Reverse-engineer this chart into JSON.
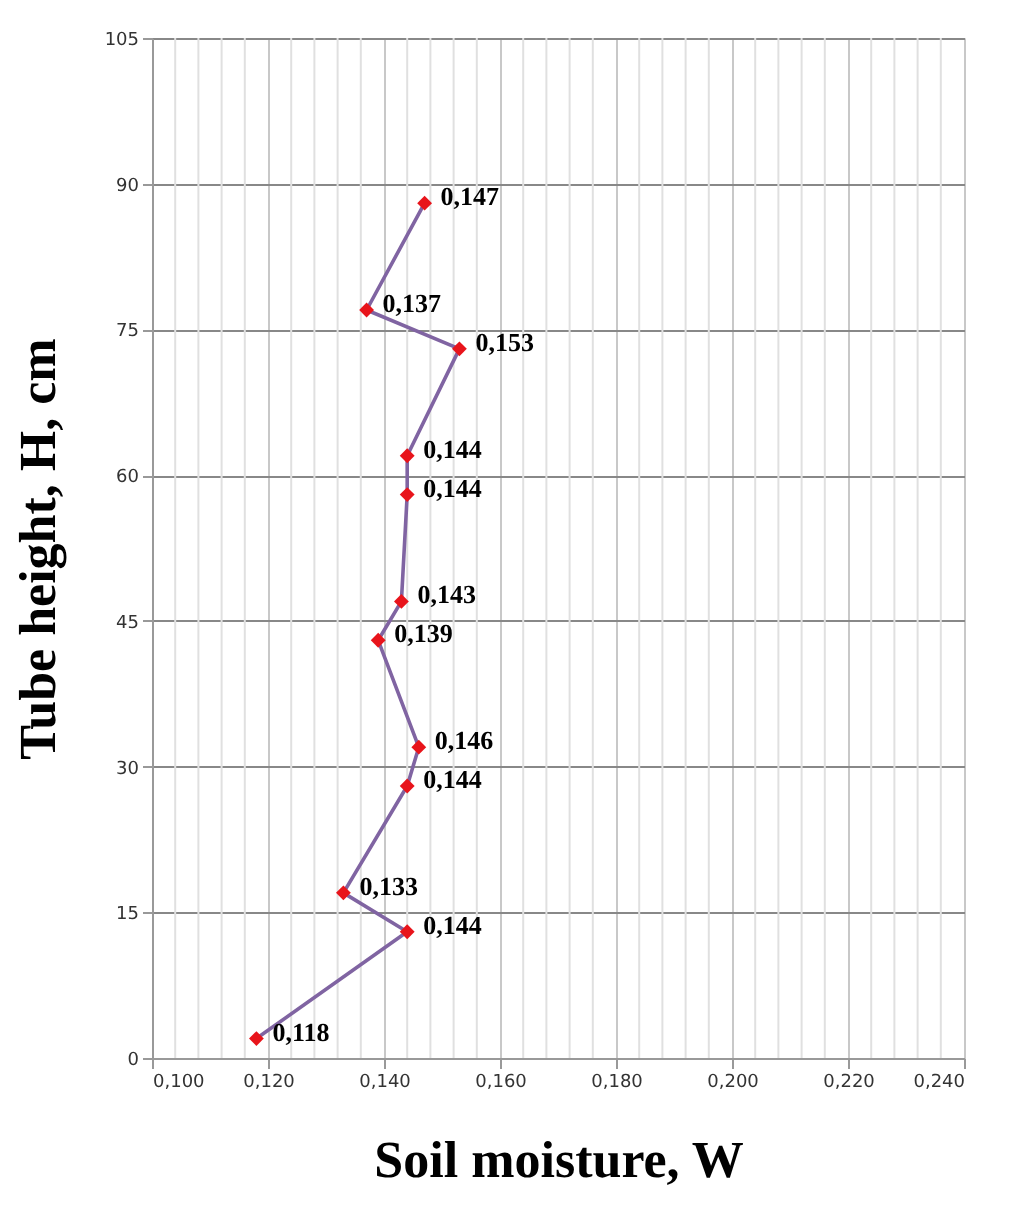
{
  "chart_data": {
    "type": "line",
    "xlabel": "Soil moisture, W",
    "ylabel": "Tube height, H, cm",
    "x": [
      0.118,
      0.144,
      0.133,
      0.144,
      0.146,
      0.139,
      0.143,
      0.144,
      0.144,
      0.153,
      0.137,
      0.147
    ],
    "series": [
      {
        "color": "#8064a2",
        "colors": [
          "#e8141b",
          "#e8141b",
          "#e8141b",
          "#e8141b",
          "#e8141b",
          "#e8141b",
          "#e8141b",
          "#e8141b",
          "#e8141b",
          "#e8141b",
          "#e8141b",
          "#e8141b"
        ],
        "values": [
          2,
          13,
          17,
          28,
          32,
          43,
          47,
          58,
          62,
          73,
          77,
          88
        ]
      }
    ],
    "marker": "diamond",
    "line_style": "solid",
    "annotations": [
      {
        "text": "0,118",
        "x": 0.118,
        "y": 2
      },
      {
        "text": "0,144",
        "x": 0.144,
        "y": 13
      },
      {
        "text": "0,133",
        "x": 0.133,
        "y": 17
      },
      {
        "text": "0,144",
        "x": 0.144,
        "y": 28
      },
      {
        "text": "0,146",
        "x": 0.146,
        "y": 32
      },
      {
        "text": "0,139",
        "x": 0.139,
        "y": 43
      },
      {
        "text": "0,143",
        "x": 0.143,
        "y": 47
      },
      {
        "text": "0,144",
        "x": 0.144,
        "y": 58
      },
      {
        "text": "0,144",
        "x": 0.144,
        "y": 62
      },
      {
        "text": "0,153",
        "x": 0.153,
        "y": 73
      },
      {
        "text": "0,137",
        "x": 0.137,
        "y": 77
      },
      {
        "text": "0,147",
        "x": 0.147,
        "y": 88
      }
    ],
    "xlim": [
      0.1,
      0.24
    ],
    "ylim": [
      0,
      105
    ],
    "xticks": [
      {
        "value": 0.1,
        "label": "0,100"
      },
      {
        "value": 0.104,
        "label": null
      },
      {
        "value": 0.108,
        "label": null
      },
      {
        "value": 0.112,
        "label": null
      },
      {
        "value": 0.116,
        "label": null
      },
      {
        "value": 0.12,
        "label": "0,120"
      },
      {
        "value": 0.124,
        "label": null
      },
      {
        "value": 0.128,
        "label": null
      },
      {
        "value": 0.132,
        "label": null
      },
      {
        "value": 0.136,
        "label": null
      },
      {
        "value": 0.14,
        "label": "0,140"
      },
      {
        "value": 0.144,
        "label": null
      },
      {
        "value": 0.148,
        "label": null
      },
      {
        "value": 0.152,
        "label": null
      },
      {
        "value": 0.156,
        "label": null
      },
      {
        "value": 0.16,
        "label": "0,160"
      },
      {
        "value": 0.164,
        "label": null
      },
      {
        "value": 0.168,
        "label": null
      },
      {
        "value": 0.172,
        "label": null
      },
      {
        "value": 0.176,
        "label": null
      },
      {
        "value": 0.18,
        "label": "0,180"
      },
      {
        "value": 0.184,
        "label": null
      },
      {
        "value": 0.188,
        "label": null
      },
      {
        "value": 0.192,
        "label": null
      },
      {
        "value": 0.196,
        "label": null
      },
      {
        "value": 0.2,
        "label": "0,200"
      },
      {
        "value": 0.204,
        "label": null
      },
      {
        "value": 0.208,
        "label": null
      },
      {
        "value": 0.212,
        "label": null
      },
      {
        "value": 0.216,
        "label": null
      },
      {
        "value": 0.22,
        "label": "0,220"
      },
      {
        "value": 0.224,
        "label": null
      },
      {
        "value": 0.228,
        "label": null
      },
      {
        "value": 0.232,
        "label": null
      },
      {
        "value": 0.236,
        "label": null
      },
      {
        "value": 0.24,
        "label": "0,240"
      }
    ],
    "yticks": [
      0,
      15,
      30,
      45,
      60,
      75,
      90,
      105
    ],
    "grid": true
  }
}
